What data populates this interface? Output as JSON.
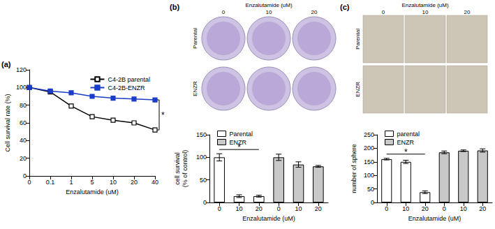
{
  "panel_labels": [
    "(a)",
    "(b)",
    "(c)"
  ],
  "image_grids": [
    {
      "type": "dishes",
      "title": "Enzalutamide (uM)",
      "columns": [
        "0",
        "10",
        "20"
      ],
      "rows": [
        "Parental",
        "ENZR"
      ]
    },
    {
      "type": "micrographs",
      "title": "Enzalutamide (uM)",
      "columns": [
        "0",
        "10",
        "20"
      ],
      "rows": [
        "Parental",
        "ENZR"
      ]
    }
  ],
  "chart_data": [
    {
      "type": "line",
      "categories": [
        "0",
        "0.1",
        "1",
        "5",
        "10",
        "20",
        "40"
      ],
      "x_label": "Enzalutamide (uM)",
      "y_label": "Cell survival rate (%)",
      "ylim": [
        0,
        120
      ],
      "yticks": [
        0,
        20,
        40,
        60,
        80,
        100,
        120
      ],
      "legend": "upper right",
      "series": [
        {
          "name": "C4-2B parental",
          "color": "#000000",
          "marker": "square-open",
          "values": [
            100,
            95,
            79,
            67,
            63,
            60,
            52
          ]
        },
        {
          "name": "C4-2B-ENZR",
          "color": "#1a3cc8",
          "marker": "square",
          "values": [
            100,
            96,
            94,
            90,
            88,
            87,
            86
          ]
        }
      ],
      "annotations": [
        {
          "text": "*",
          "series": [
            "C4-2B parental",
            "C4-2B-ENZR"
          ]
        }
      ]
    },
    {
      "type": "bar",
      "categories": [
        "0",
        "10",
        "20",
        "0",
        "10",
        "20"
      ],
      "x_label": "Enzalutamide (uM)",
      "y_label": "cell survival\n(% of control)",
      "ylim": [
        0,
        150
      ],
      "yticks": [
        0,
        50,
        100,
        150
      ],
      "legend": "upper left",
      "series": [
        {
          "name": "Parental",
          "color": "#ffffff",
          "values": [
            100,
            14,
            14,
            null,
            null,
            null
          ],
          "errors": [
            8,
            3,
            2,
            null,
            null,
            null
          ]
        },
        {
          "name": "ENZR",
          "color": "#c8c8c8",
          "values": [
            null,
            null,
            null,
            100,
            84,
            80
          ],
          "errors": [
            null,
            null,
            null,
            7,
            6,
            2
          ]
        }
      ],
      "annotations": [
        {
          "text": "*",
          "series": "Parental"
        }
      ]
    },
    {
      "type": "bar",
      "categories": [
        "0",
        "10",
        "20",
        "0",
        "10",
        "20"
      ],
      "x_label": "Enzalutamide (uM)",
      "y_label": "number of sphere",
      "ylim": [
        0,
        250
      ],
      "yticks": [
        0,
        50,
        100,
        150,
        200,
        250
      ],
      "legend": "upper left",
      "series": [
        {
          "name": "parental",
          "color": "#ffffff",
          "values": [
            160,
            150,
            38,
            null,
            null,
            null
          ],
          "errors": [
            3,
            6,
            5,
            null,
            null,
            null
          ]
        },
        {
          "name": "ENZR",
          "color": "#c8c8c8",
          "values": [
            null,
            null,
            null,
            185,
            191,
            192
          ],
          "errors": [
            null,
            null,
            null,
            5,
            3,
            6
          ]
        }
      ],
      "annotations": [
        {
          "text": "*",
          "series": "parental"
        }
      ]
    }
  ]
}
